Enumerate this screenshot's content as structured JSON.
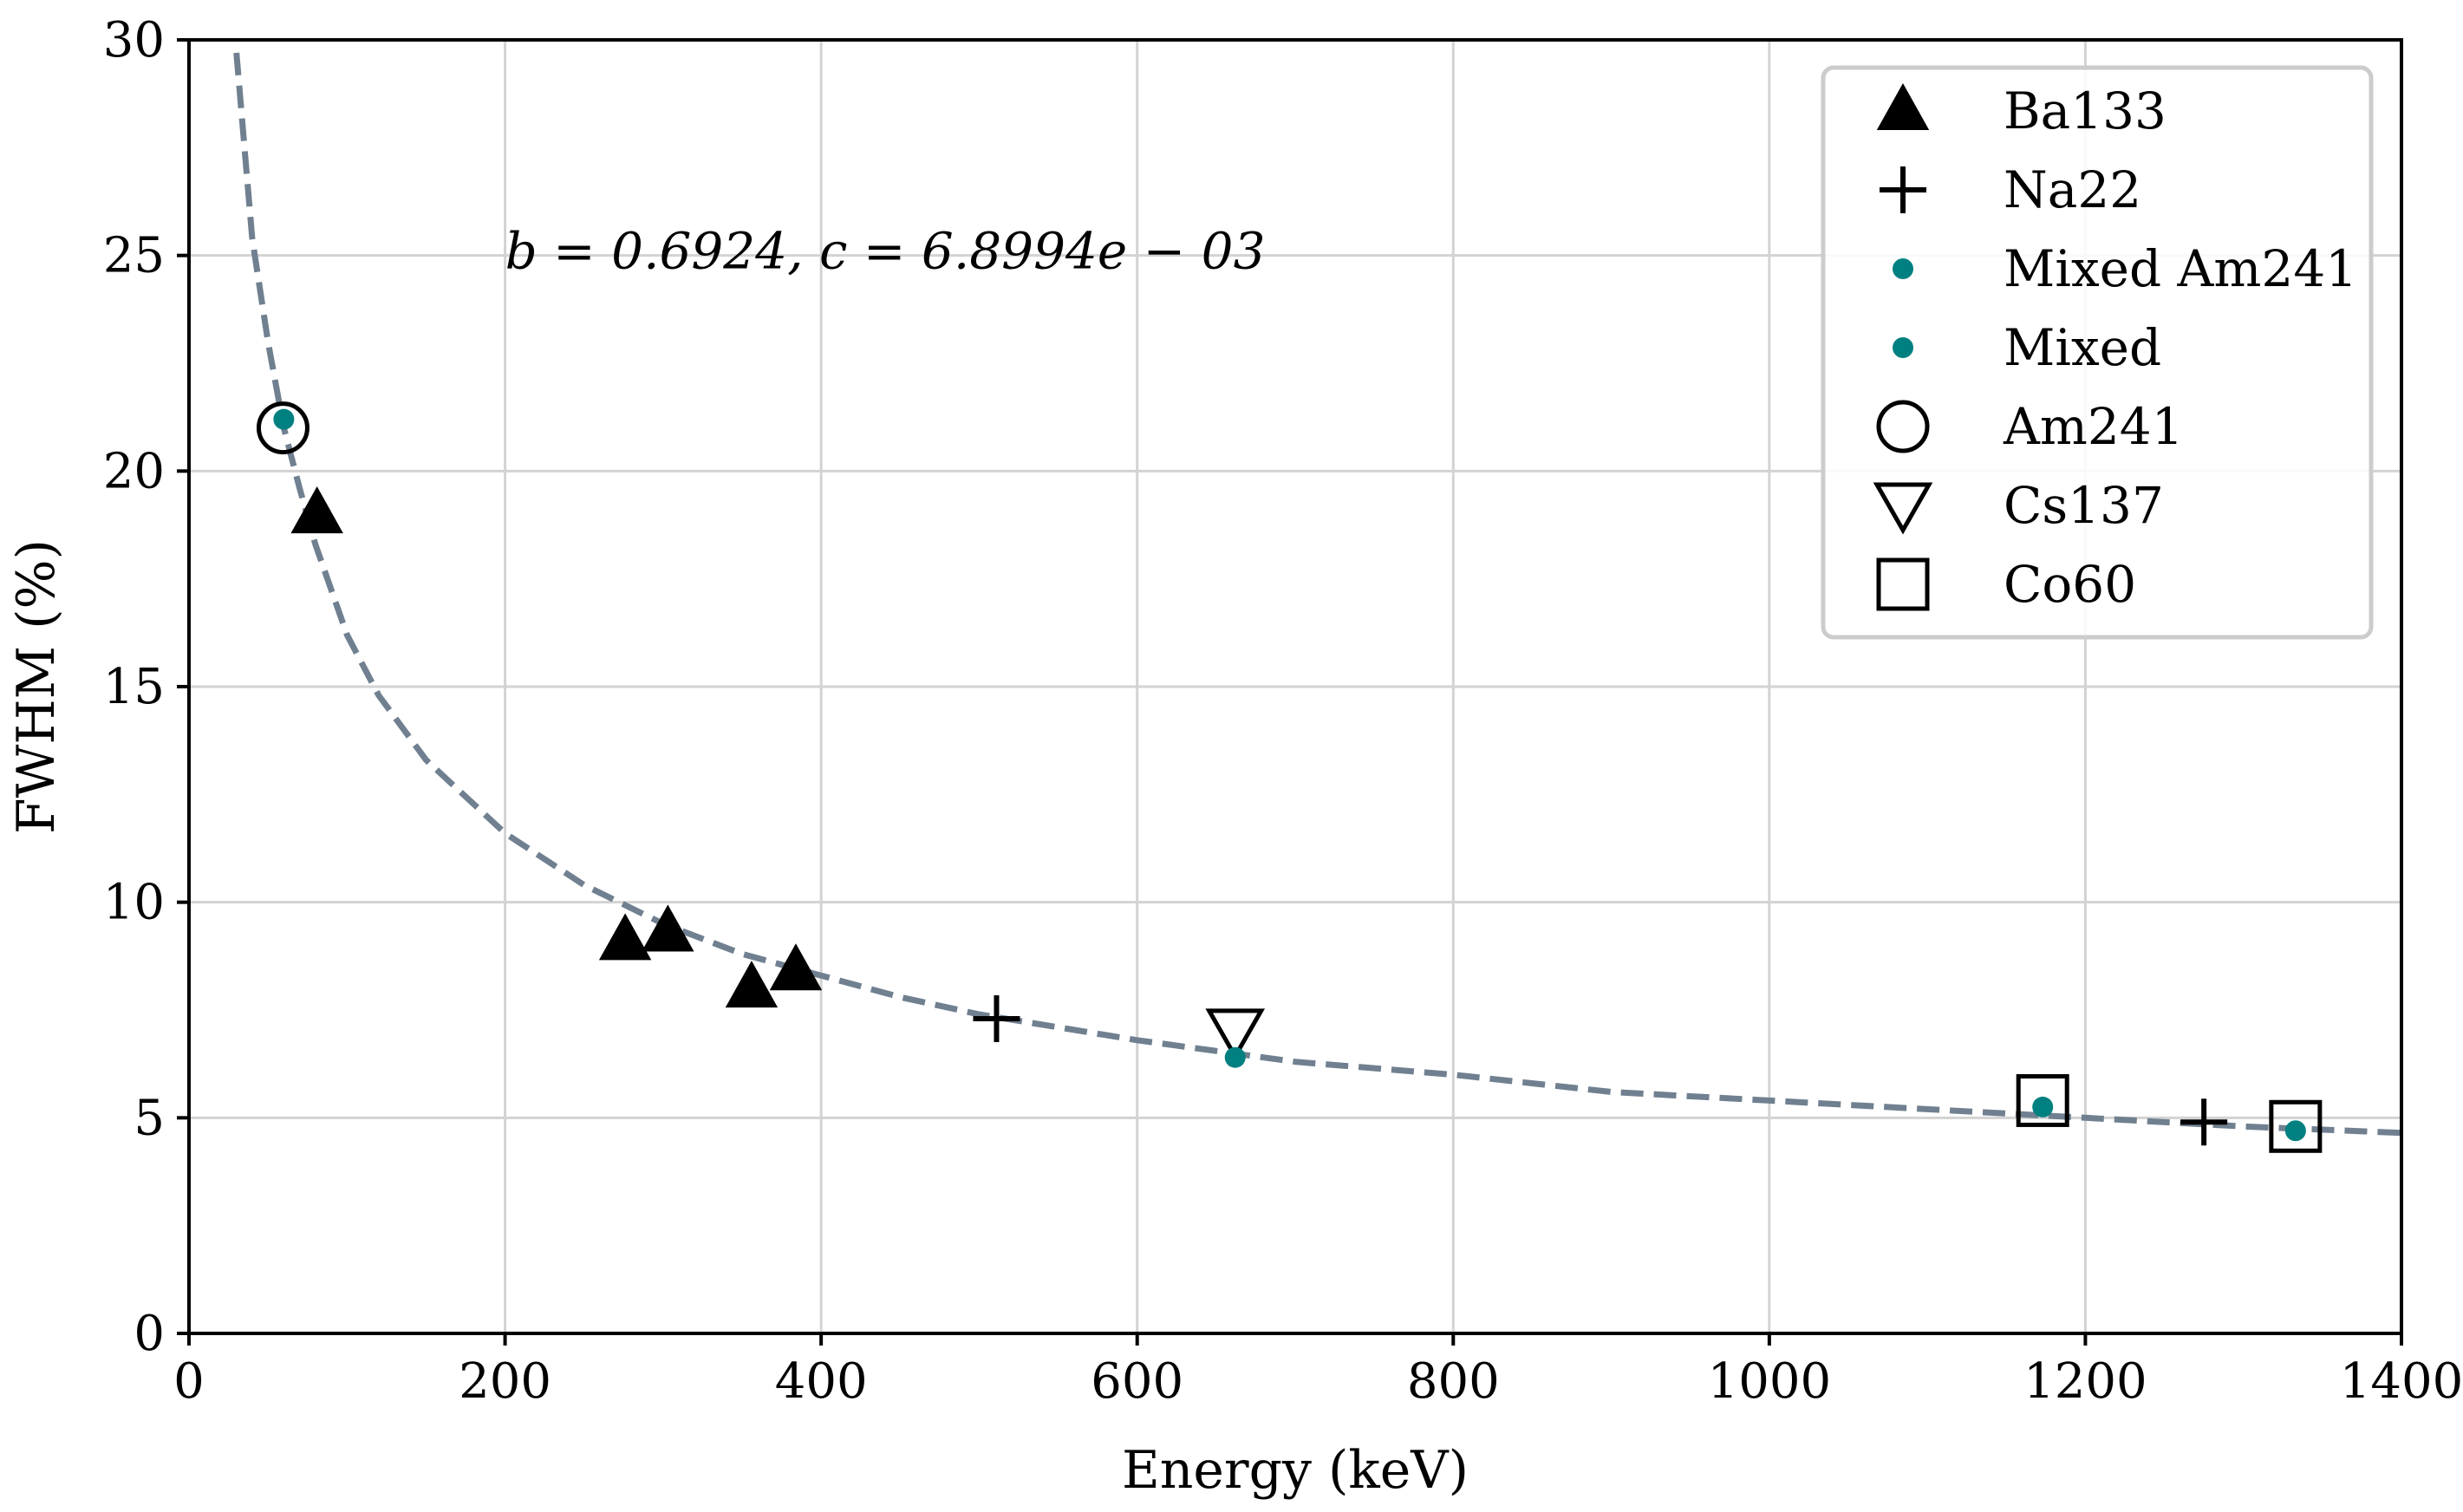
{
  "chart_data": {
    "type": "scatter",
    "title": "",
    "xlabel": "Energy (keV)",
    "ylabel": "FWHM (%)",
    "xlim": [
      0,
      1400
    ],
    "ylim": [
      0,
      30
    ],
    "xticks": [
      0,
      200,
      400,
      600,
      800,
      1000,
      1200,
      1400
    ],
    "yticks": [
      0,
      5,
      10,
      15,
      20,
      25,
      30
    ],
    "grid": true,
    "legend_position": "top-right",
    "annotation": "b = 0.6924, c = 6.8994e − 03",
    "fit": {
      "name": "fit",
      "style": "dashed",
      "color": "#708090",
      "x_range": [
        30,
        1400
      ],
      "points": [
        [
          30,
          29.7
        ],
        [
          40,
          25.4
        ],
        [
          50,
          23.0
        ],
        [
          60,
          21.0
        ],
        [
          70,
          19.6
        ],
        [
          80,
          18.3
        ],
        [
          100,
          16.2
        ],
        [
          120,
          14.8
        ],
        [
          150,
          13.3
        ],
        [
          200,
          11.6
        ],
        [
          250,
          10.4
        ],
        [
          300,
          9.5
        ],
        [
          350,
          8.8
        ],
        [
          400,
          8.3
        ],
        [
          450,
          7.8
        ],
        [
          500,
          7.4
        ],
        [
          600,
          6.8
        ],
        [
          700,
          6.3
        ],
        [
          800,
          6.0
        ],
        [
          900,
          5.6
        ],
        [
          1000,
          5.4
        ],
        [
          1100,
          5.2
        ],
        [
          1200,
          5.0
        ],
        [
          1300,
          4.8
        ],
        [
          1400,
          4.65
        ]
      ]
    },
    "series": [
      {
        "name": "Ba133",
        "marker": "triangle-up",
        "color": "#000000",
        "points": [
          [
            81,
            19.0
          ],
          [
            276,
            9.1
          ],
          [
            303,
            9.3
          ],
          [
            356,
            8.0
          ],
          [
            384,
            8.4
          ]
        ]
      },
      {
        "name": "Na22",
        "marker": "plus",
        "color": "#000000",
        "points": [
          [
            511,
            7.3
          ],
          [
            1275,
            4.9
          ]
        ]
      },
      {
        "name": "Mixed Am241",
        "marker": "dot",
        "color": "#008080",
        "points": [
          [
            60,
            21.2
          ]
        ]
      },
      {
        "name": "Mixed",
        "marker": "dot",
        "color": "#008080",
        "points": [
          [
            662,
            6.4
          ],
          [
            1173,
            5.25
          ],
          [
            1333,
            4.7
          ]
        ]
      },
      {
        "name": "Am241",
        "marker": "circle-open",
        "color": "#000000",
        "points": [
          [
            59.5,
            21.0
          ]
        ]
      },
      {
        "name": "Cs137",
        "marker": "triangle-down-open",
        "color": "#000000",
        "points": [
          [
            662,
            7.0
          ]
        ]
      },
      {
        "name": "Co60",
        "marker": "square-open",
        "color": "#000000",
        "points": [
          [
            1173,
            5.4
          ],
          [
            1333,
            4.8
          ]
        ]
      }
    ]
  }
}
